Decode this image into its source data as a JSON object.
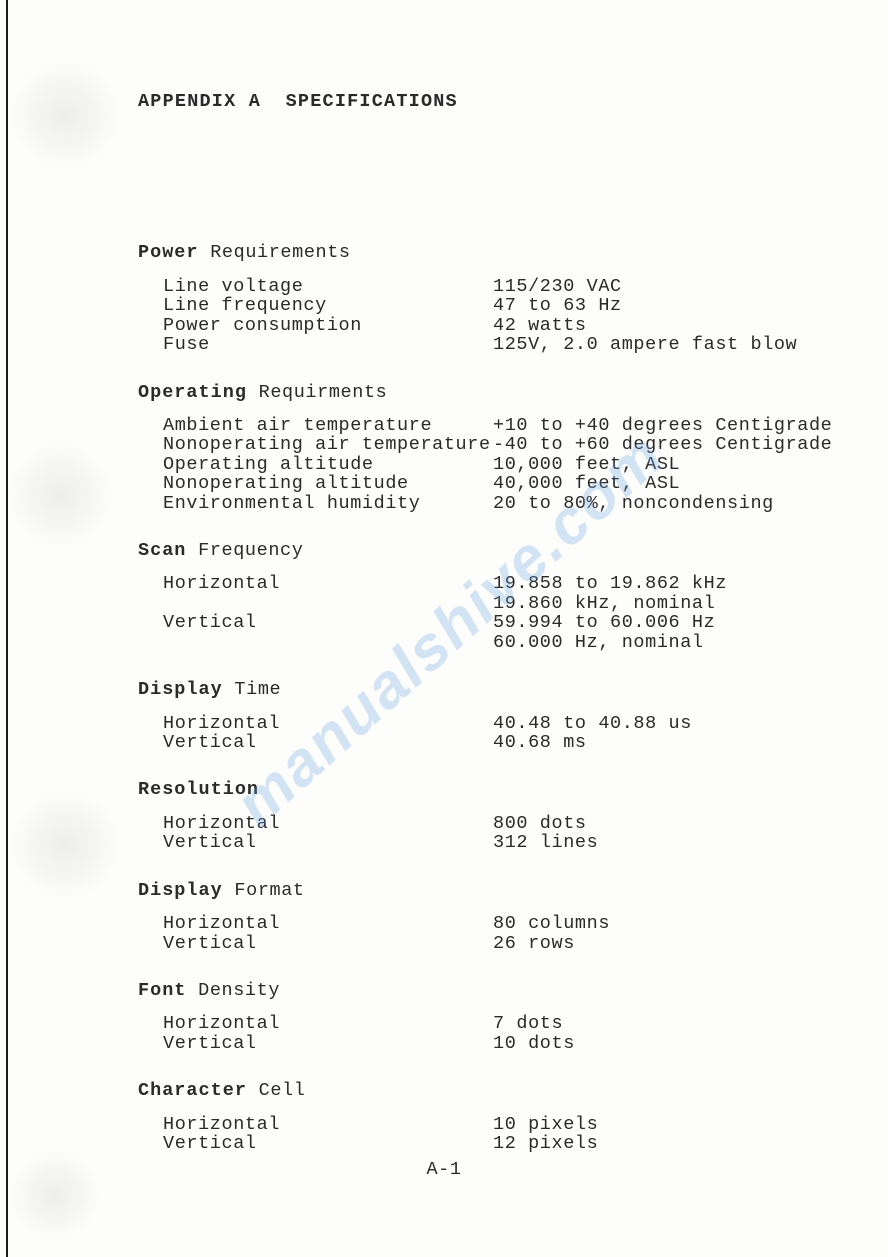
{
  "title": "APPENDIX A  SPECIFICATIONS",
  "watermark": "manualshive.com",
  "page_number": "A-1",
  "sections": [
    {
      "heading_bold": "Power",
      "heading_rest": " Requirements",
      "rows": [
        {
          "label": "Line voltage",
          "value": "115/230 VAC"
        },
        {
          "label": "Line frequency",
          "value": "47 to 63 Hz"
        },
        {
          "label": "Power consumption",
          "value": "42 watts"
        },
        {
          "label": "Fuse",
          "value": "125V, 2.0 ampere fast blow"
        }
      ]
    },
    {
      "heading_bold": "Operating",
      "heading_rest": " Requirments",
      "rows": [
        {
          "label": "Ambient air temperature",
          "value": "+10 to +40 degrees Centigrade"
        },
        {
          "label": "Nonoperating air temperature",
          "value": "-40 to +60 degrees Centigrade"
        },
        {
          "label": "Operating altitude",
          "value": "10,000 feet, ASL"
        },
        {
          "label": "Nonoperating altitude",
          "value": "40,000 feet, ASL"
        },
        {
          "label": "Environmental humidity",
          "value": "20 to 80%, noncondensing"
        }
      ]
    },
    {
      "heading_bold": "Scan",
      "heading_rest": " Frequency",
      "rows": [
        {
          "label": "Horizontal",
          "value": "19.858 to 19.862 kHz"
        },
        {
          "label": "",
          "value": "19.860 kHz, nominal"
        },
        {
          "label": "Vertical",
          "value": "59.994 to 60.006 Hz"
        },
        {
          "label": "",
          "value": "60.000 Hz, nominal"
        }
      ]
    },
    {
      "heading_bold": "Display",
      "heading_rest": " Time",
      "rows": [
        {
          "label": "Horizontal",
          "value": "40.48 to 40.88 us"
        },
        {
          "label": "Vertical",
          "value": "40.68 ms"
        }
      ]
    },
    {
      "heading_bold": "Resolution",
      "heading_rest": "",
      "rows": [
        {
          "label": "Horizontal",
          "value": "800 dots"
        },
        {
          "label": "Vertical",
          "value": "312 lines"
        }
      ]
    },
    {
      "heading_bold": "Display",
      "heading_rest": " Format",
      "rows": [
        {
          "label": "Horizontal",
          "value": "80 columns"
        },
        {
          "label": "Vertical",
          "value": "26 rows"
        }
      ]
    },
    {
      "heading_bold": "Font",
      "heading_rest": " Density",
      "rows": [
        {
          "label": "Horizontal",
          "value": "7 dots"
        },
        {
          "label": "Vertical",
          "value": "10 dots"
        }
      ]
    },
    {
      "heading_bold": "Character",
      "heading_rest": " Cell",
      "rows": [
        {
          "label": "Horizontal",
          "value": "10 pixels"
        },
        {
          "label": "Vertical",
          "value": "12 pixels"
        }
      ]
    }
  ]
}
